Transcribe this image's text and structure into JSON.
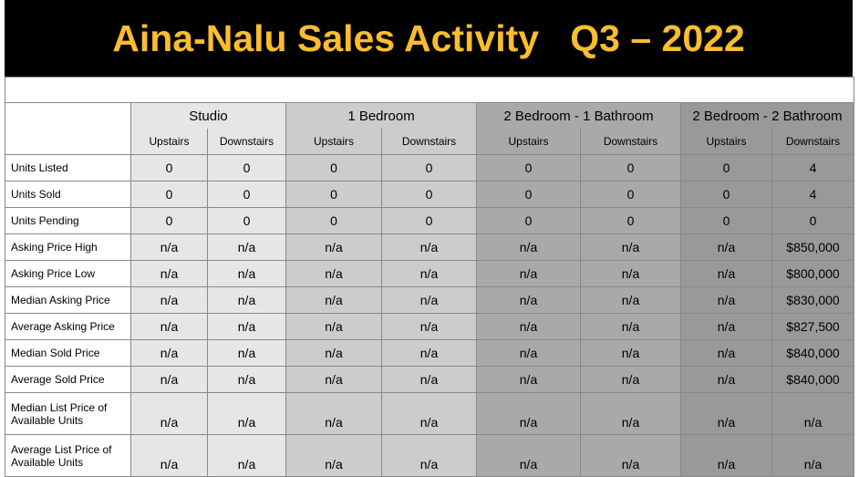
{
  "title": "Aina-Nalu Sales Activity   Q3 – 2022",
  "groups": [
    "Studio",
    "1 Bedroom",
    "2 Bedroom - 1 Bathroom",
    "2 Bedroom - 2 Bathroom"
  ],
  "subheaders": [
    "Upstairs",
    "Downstairs",
    "Upstairs",
    "Downstairs",
    "Upstairs",
    "Downstairs",
    "Upstairs",
    "Downstairs"
  ],
  "group_colors": [
    "#e6e6e6",
    "#cccccc",
    "#a9a9a9",
    "#999999"
  ],
  "rows": [
    {
      "label": "Units Listed",
      "values": [
        "0",
        "0",
        "0",
        "0",
        "0",
        "0",
        "0",
        "4"
      ]
    },
    {
      "label": "Units Sold",
      "values": [
        "0",
        "0",
        "0",
        "0",
        "0",
        "0",
        "0",
        "4"
      ]
    },
    {
      "label": "Units Pending",
      "values": [
        "0",
        "0",
        "0",
        "0",
        "0",
        "0",
        "0",
        "0"
      ]
    },
    {
      "label": "Asking Price High",
      "values": [
        "n/a",
        "n/a",
        "n/a",
        "n/a",
        "n/a",
        "n/a",
        "n/a",
        "$850,000"
      ]
    },
    {
      "label": "Asking Price Low",
      "values": [
        "n/a",
        "n/a",
        "n/a",
        "n/a",
        "n/a",
        "n/a",
        "n/a",
        "$800,000"
      ]
    },
    {
      "label": "Median Asking Price",
      "values": [
        "n/a",
        "n/a",
        "n/a",
        "n/a",
        "n/a",
        "n/a",
        "n/a",
        "$830,000"
      ]
    },
    {
      "label": "Average Asking Price",
      "values": [
        "n/a",
        "n/a",
        "n/a",
        "n/a",
        "n/a",
        "n/a",
        "n/a",
        "$827,500"
      ]
    },
    {
      "label": "Median Sold Price",
      "values": [
        "n/a",
        "n/a",
        "n/a",
        "n/a",
        "n/a",
        "n/a",
        "n/a",
        "$840,000"
      ]
    },
    {
      "label": "Average Sold Price",
      "values": [
        "n/a",
        "n/a",
        "n/a",
        "n/a",
        "n/a",
        "n/a",
        "n/a",
        "$840,000"
      ]
    },
    {
      "label": "Median List Price of Available Units",
      "values": [
        "n/a",
        "n/a",
        "n/a",
        "n/a",
        "n/a",
        "n/a",
        "n/a",
        "n/a"
      ]
    },
    {
      "label": "Average List Price of Available Units",
      "values": [
        "n/a",
        "n/a",
        "n/a",
        "n/a",
        "n/a",
        "n/a",
        "n/a",
        "n/a"
      ]
    }
  ]
}
